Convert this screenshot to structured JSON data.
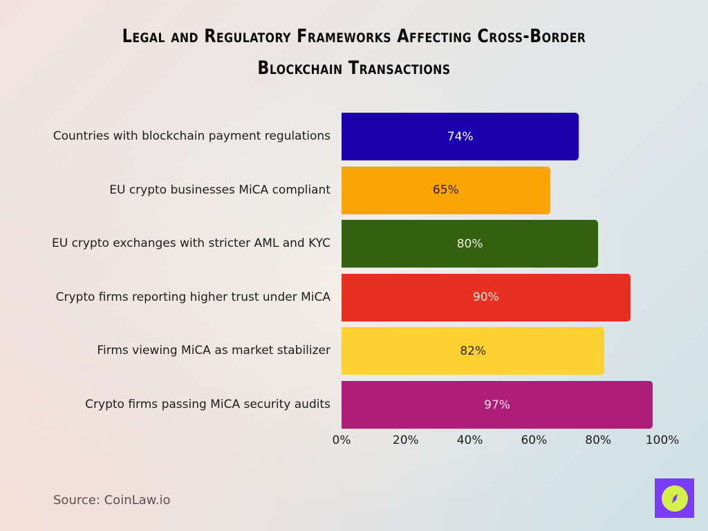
{
  "title": "Legal and Regulatory Frameworks Affecting Cross-Border Blockchain Transactions",
  "title_lines": [
    "Legal and Regulatory Frameworks Affecting Cross-Border",
    "Blockchain Transactions"
  ],
  "source": "Source: CoinLaw.io",
  "logo": {
    "icon": "compass-icon",
    "bg_color": "#7b3cf5",
    "fg_color": "#d5f04a"
  },
  "chart_data": {
    "type": "bar",
    "orientation": "horizontal",
    "title": "Legal and Regulatory Frameworks Affecting Cross-Border Blockchain Transactions",
    "xlabel": "",
    "ylabel": "",
    "xlim": [
      0,
      100
    ],
    "grid": false,
    "legend": null,
    "categories": [
      "Countries with blockchain payment regulations",
      "EU crypto businesses MiCA compliant",
      "EU crypto exchanges with stricter AML and KYC",
      "Crypto firms reporting higher trust under MiCA",
      "Firms viewing MiCA as market stabilizer",
      "Crypto firms passing MiCA security audits"
    ],
    "values": [
      74,
      65,
      80,
      90,
      82,
      97
    ],
    "value_labels": [
      "74%",
      "65%",
      "80%",
      "90%",
      "82%",
      "97%"
    ],
    "colors": [
      "#1c00b0",
      "#fba406",
      "#336110",
      "#e83022",
      "#fed232",
      "#ad1e78"
    ],
    "label_colors": [
      "#ffffff",
      "#2a1a10",
      "#f0f0e0",
      "#ffe8e0",
      "#2a2010",
      "#ffe0f0"
    ],
    "x_ticks": [
      "0%",
      "20%",
      "40%",
      "60%",
      "80%",
      "100%"
    ],
    "x_tick_values": [
      0,
      20,
      40,
      60,
      80,
      100
    ]
  }
}
